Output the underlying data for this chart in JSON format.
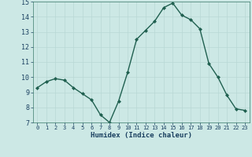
{
  "x": [
    0,
    1,
    2,
    3,
    4,
    5,
    6,
    7,
    8,
    9,
    10,
    11,
    12,
    13,
    14,
    15,
    16,
    17,
    18,
    19,
    20,
    21,
    22,
    23
  ],
  "y": [
    9.3,
    9.7,
    9.9,
    9.8,
    9.3,
    8.9,
    8.5,
    7.5,
    7.0,
    8.4,
    10.3,
    12.5,
    13.1,
    13.7,
    14.6,
    14.9,
    14.1,
    13.8,
    13.2,
    10.9,
    10.0,
    8.8,
    7.9,
    7.8
  ],
  "xlabel": "Humidex (Indice chaleur)",
  "ylim": [
    7,
    15
  ],
  "xlim": [
    -0.5,
    23.5
  ],
  "yticks": [
    7,
    8,
    9,
    10,
    11,
    12,
    13,
    14,
    15
  ],
  "xticks": [
    0,
    1,
    2,
    3,
    4,
    5,
    6,
    7,
    8,
    9,
    10,
    11,
    12,
    13,
    14,
    15,
    16,
    17,
    18,
    19,
    20,
    21,
    22,
    23
  ],
  "line_color": "#206050",
  "marker_color": "#206050",
  "bg_color": "#cce8e5",
  "grid_color": "#b8d8d5",
  "axis_bg": "#cce8e5",
  "xlabel_color": "#1a4060",
  "tick_label_color": "#1a4060",
  "xlabel_fontsize": 6.5,
  "ytick_fontsize": 6.0,
  "xtick_fontsize": 5.0
}
